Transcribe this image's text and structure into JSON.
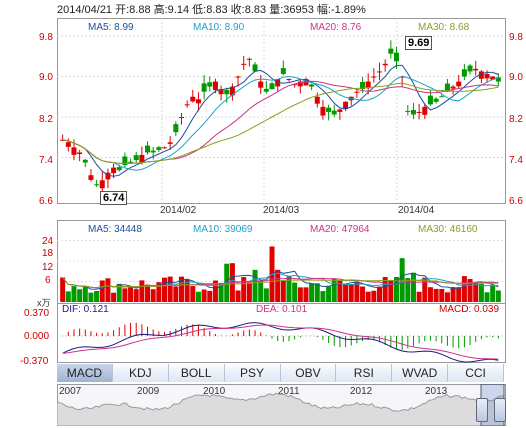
{
  "header": {
    "text": "2014/04/21 开:8.88 高:9.14 低:8.83 收:8.83 量:36953 幅:-1.89%"
  },
  "price_panel": {
    "ma_labels": [
      {
        "text": "MA5: 8.99",
        "color": "#1a4fa0"
      },
      {
        "text": "MA10: 8.90",
        "color": "#1aa3c8"
      },
      {
        "text": "MA20: 8.76",
        "color": "#d0308a"
      },
      {
        "text": "MA30: 8.68",
        "color": "#8aa020"
      }
    ],
    "y_ticks": [
      "9.8",
      "9.0",
      "8.2",
      "7.4",
      "6.6"
    ],
    "x_ticks": [
      "2014/02",
      "2014/03",
      "2014/04"
    ],
    "high_callout": "9.69",
    "low_callout": "6.74"
  },
  "volume_panel": {
    "ma_labels": [
      {
        "text": "MA5: 34448",
        "color": "#1a4fa0"
      },
      {
        "text": "MA10: 39069",
        "color": "#1aa3c8"
      },
      {
        "text": "MA20: 47964",
        "color": "#d0308a"
      },
      {
        "text": "MA30: 46160",
        "color": "#8aa020"
      }
    ],
    "y_ticks": [
      "24",
      "18",
      "12",
      "6"
    ],
    "unit": "x万"
  },
  "macd_panel": {
    "dif": "DIF: 0.121",
    "dea": "DEA: 0.101",
    "macd": "MACD: 0.039",
    "y_ticks": [
      "0.370",
      "0.000",
      "-0.370"
    ]
  },
  "tabs": [
    "MACD",
    "KDJ",
    "BOLL",
    "PSY",
    "OBV",
    "RSI",
    "WVAD",
    "CCI"
  ],
  "overview": {
    "years": [
      "2007",
      "2009",
      "2010",
      "2011",
      "2012",
      "2013"
    ]
  },
  "colors": {
    "up": "#e00000",
    "down": "#009900",
    "ma5": "#1a4fa0",
    "ma10": "#1aa3c8",
    "ma20": "#d0308a",
    "ma30": "#8aa020"
  }
}
